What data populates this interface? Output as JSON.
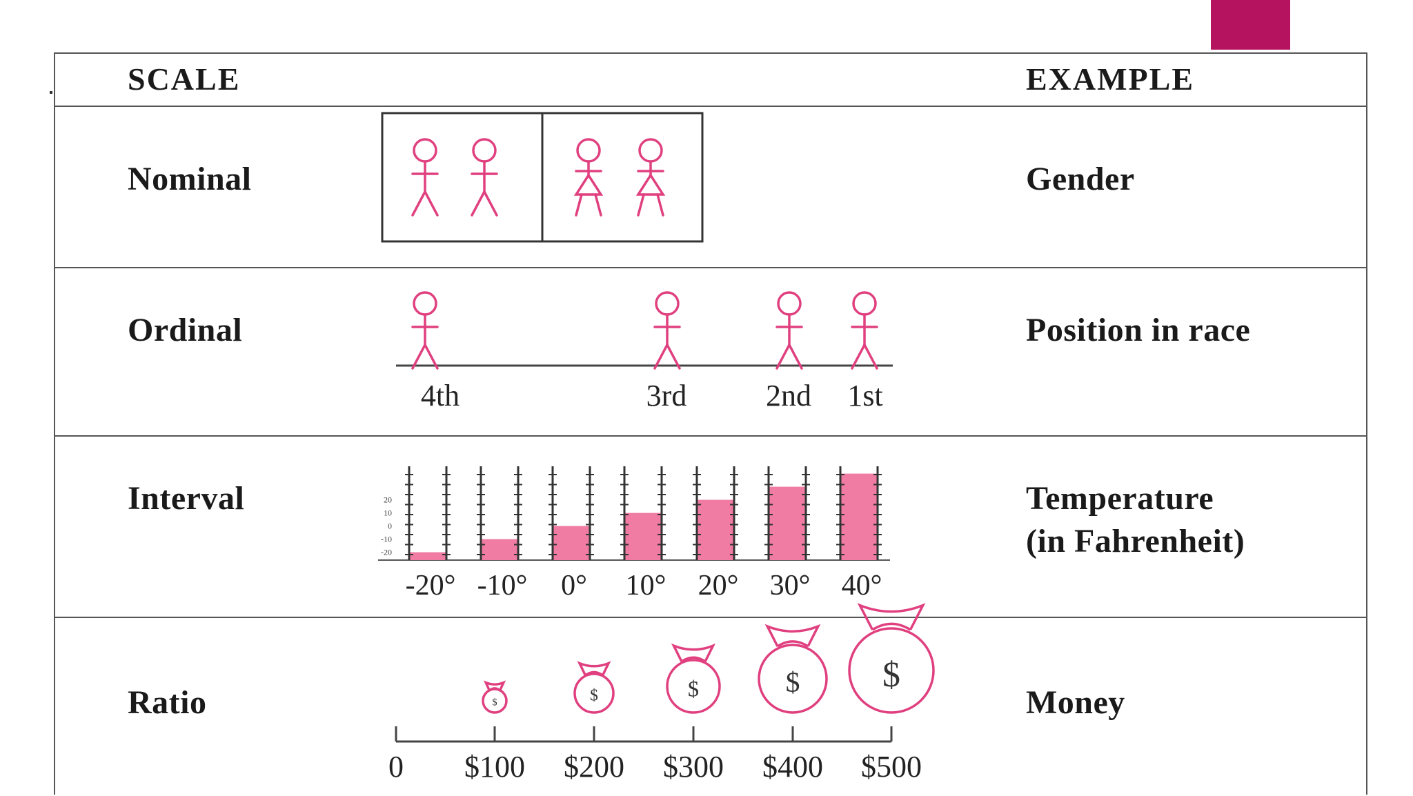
{
  "header": {
    "scale": "SCALE",
    "example": "EXAMPLE"
  },
  "rows": [
    {
      "scale": "Nominal",
      "example": "Gender"
    },
    {
      "scale": "Ordinal",
      "example": "Position in race",
      "positions": [
        "4th",
        "3rd",
        "2nd",
        "1st"
      ]
    },
    {
      "scale": "Interval",
      "example_lines": [
        "Temperature",
        "(in Fahrenheit)"
      ],
      "temps": [
        {
          "label": "-20°",
          "value": -20
        },
        {
          "label": "-10°",
          "value": -10
        },
        {
          "label": "0°",
          "value": 0
        },
        {
          "label": "10°",
          "value": 10
        },
        {
          "label": "20°",
          "value": 20
        },
        {
          "label": "30°",
          "value": 30
        },
        {
          "label": "40°",
          "value": 40
        }
      ],
      "axis_ticks": [
        "20",
        "10",
        "0",
        "-10",
        "-20"
      ]
    },
    {
      "scale": "Ratio",
      "example": "Money",
      "axis_labels": [
        "0",
        "$100",
        "$200",
        "$300",
        "$400",
        "$500"
      ],
      "bag_symbol": "$"
    }
  ],
  "colors": {
    "accent": "#b5135f",
    "figure": "#e0407f",
    "bar": "#f07ba3",
    "line": "#555555"
  },
  "icons": [
    "male-figure-icon",
    "female-figure-icon",
    "thermometer-bar-icon",
    "money-bag-icon"
  ]
}
